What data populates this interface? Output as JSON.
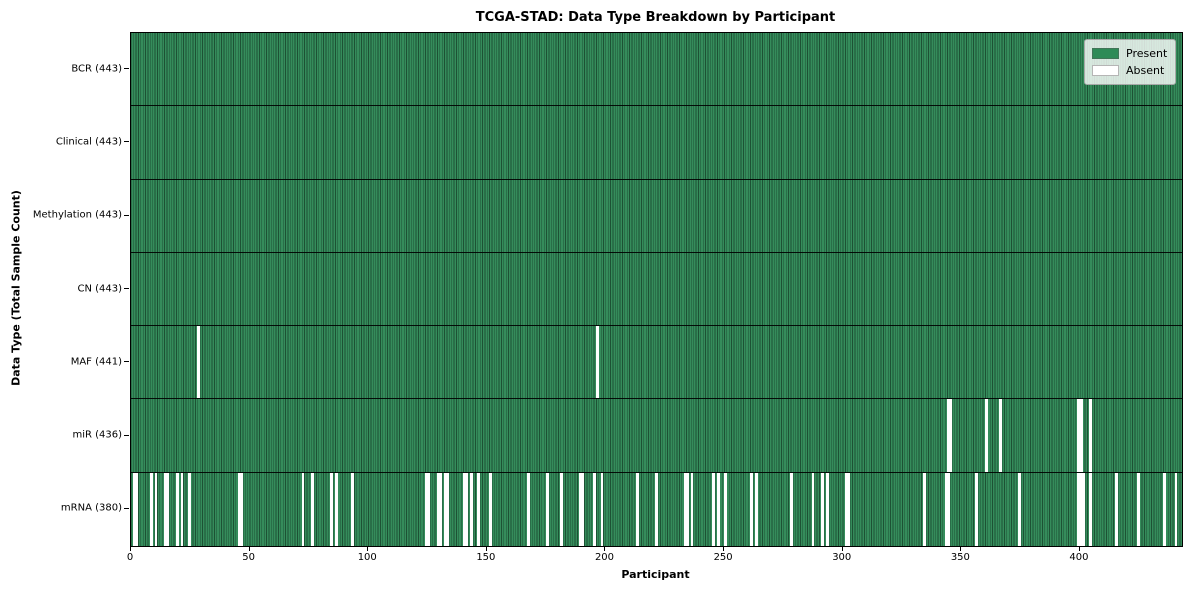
{
  "chart_data": {
    "type": "heatmap",
    "title": "TCGA-STAD: Data Type Breakdown by Participant",
    "xlabel": "Participant",
    "ylabel": "Data Type (Total Sample Count)",
    "x_ticks": [
      0,
      50,
      100,
      150,
      200,
      250,
      300,
      350,
      400
    ],
    "xlim": [
      0,
      443
    ],
    "n_participants": 443,
    "grid": false,
    "legend_position": "upper right",
    "legend": [
      {
        "label": "Present",
        "color": "#2e8b57"
      },
      {
        "label": "Absent",
        "color": "#ffffff"
      }
    ],
    "colors": {
      "present": "#2e8b57",
      "absent": "#ffffff",
      "cell_edge": "#000000"
    },
    "rows": [
      {
        "label": "BCR (443)",
        "data_type": "BCR",
        "total": 443,
        "absent": []
      },
      {
        "label": "Clinical (443)",
        "data_type": "Clinical",
        "total": 443,
        "absent": []
      },
      {
        "label": "Methylation (443)",
        "data_type": "Methylation",
        "total": 443,
        "absent": []
      },
      {
        "label": "CN (443)",
        "data_type": "CN",
        "total": 443,
        "absent": []
      },
      {
        "label": "MAF (441)",
        "data_type": "MAF",
        "total": 441,
        "absent": [
          28,
          196
        ]
      },
      {
        "label": "miR (436)",
        "data_type": "miR",
        "total": 436,
        "absent": [
          344,
          345,
          360,
          366,
          399,
          400,
          404
        ]
      },
      {
        "label": "mRNA (380)",
        "data_type": "mRNA",
        "total": 380,
        "absent": [
          1,
          2,
          8,
          10,
          14,
          15,
          19,
          21,
          24,
          45,
          46,
          72,
          76,
          84,
          86,
          93,
          124,
          125,
          129,
          130,
          132,
          133,
          140,
          141,
          143,
          146,
          151,
          167,
          175,
          181,
          189,
          190,
          195,
          198,
          213,
          221,
          233,
          234,
          236,
          245,
          247,
          250,
          261,
          263,
          278,
          287,
          291,
          293,
          301,
          302,
          334,
          343,
          344,
          356,
          374,
          399,
          400,
          401,
          404,
          415,
          424,
          435,
          440
        ]
      }
    ]
  }
}
